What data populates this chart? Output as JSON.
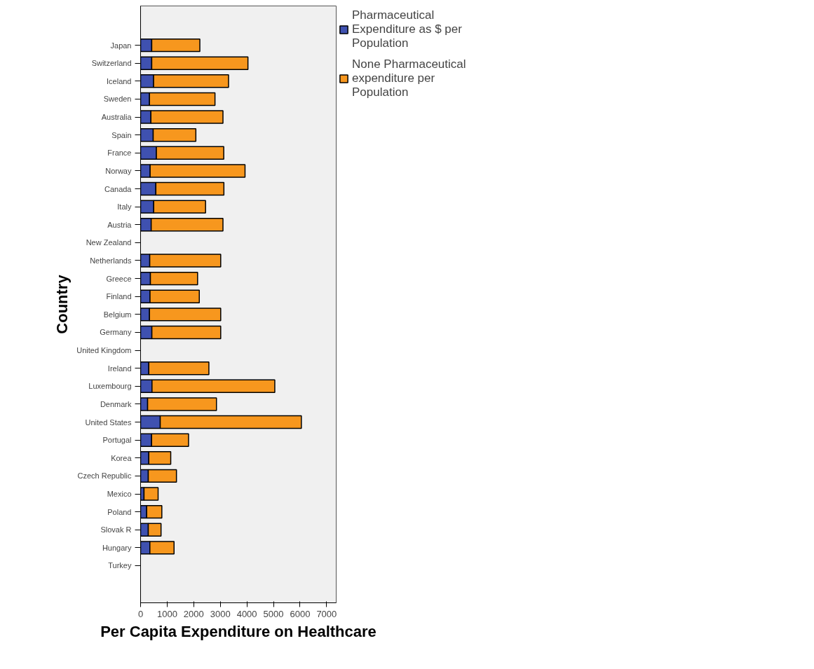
{
  "chart_data": {
    "type": "bar",
    "orientation": "horizontal",
    "stacked": true,
    "xlabel": "Per Capita Expenditure on Healthcare",
    "ylabel": "Country",
    "categories": [
      "Japan",
      "Switzerland",
      "Iceland",
      "Sweden",
      "Australia",
      "Spain",
      "France",
      "Norway",
      "Canada",
      "Italy",
      "Austria",
      "New Zealand",
      "Netherlands",
      "Greece",
      "Finland",
      "Belgium",
      "Germany",
      "United Kingdom",
      "Ireland",
      "Luxembourg",
      "Denmark",
      "United States",
      "Portugal",
      "Korea",
      "Czech Republic",
      "Mexico",
      "Poland",
      "Slovak R",
      "Hungary",
      "Turkey"
    ],
    "series": [
      {
        "name": "Pharmaceutical Expenditure as $ per Population",
        "color": "#3f51b0",
        "values": [
          420,
          420,
          490,
          335,
          390,
          475,
          595,
          360,
          575,
          495,
          400,
          null,
          345,
          370,
          355,
          335,
          425,
          null,
          310,
          430,
          265,
          740,
          415,
          310,
          290,
          130,
          230,
          290,
          350,
          null
        ]
      },
      {
        "name": "None Pharmaceutical expenditure per Population",
        "color": "#f7971e",
        "values": [
          1810,
          3620,
          2820,
          2465,
          2710,
          1605,
          2535,
          3570,
          2560,
          1950,
          2700,
          null,
          2670,
          1775,
          1855,
          2680,
          2590,
          null,
          2260,
          4620,
          2590,
          5310,
          1390,
          825,
          1060,
          530,
          570,
          480,
          910,
          null
        ]
      }
    ],
    "xlim": [
      0,
      7360
    ],
    "xticks": [
      0,
      1000,
      2000,
      3000,
      4000,
      5000,
      6000,
      7000
    ],
    "grid": false,
    "legend": "right"
  }
}
